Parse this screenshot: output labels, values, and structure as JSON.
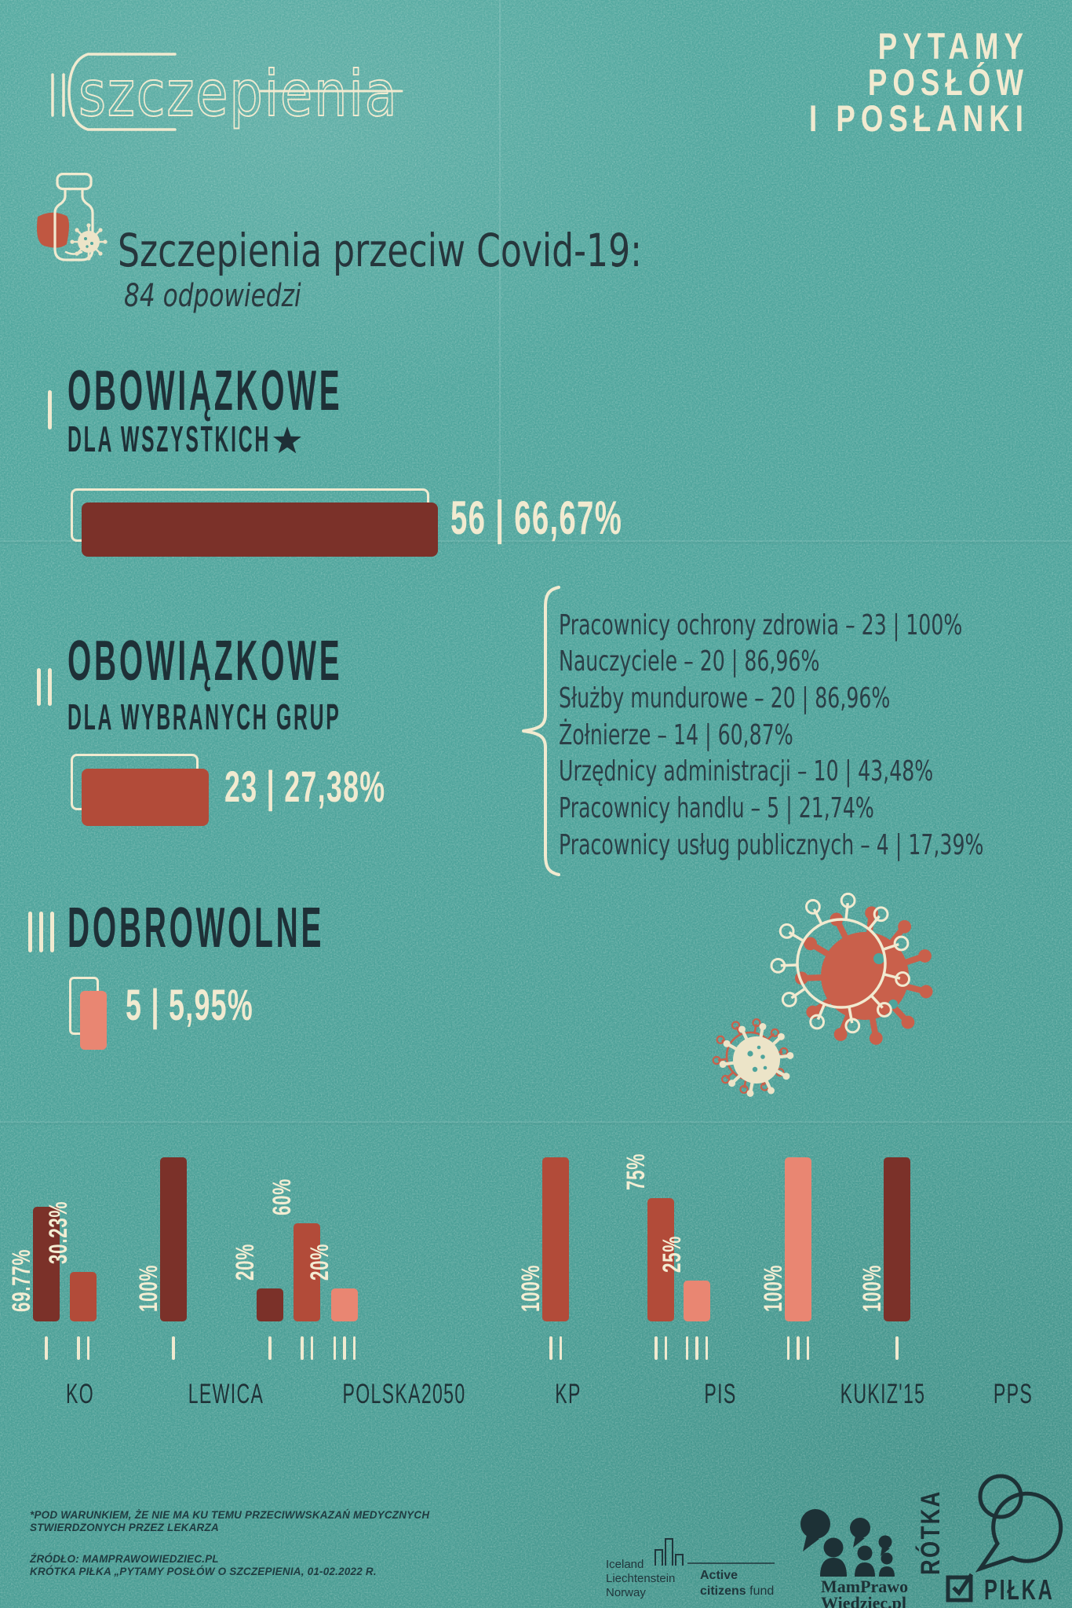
{
  "palette": {
    "background": "#4ea49c",
    "cream": "#f1ead0",
    "dark": "#1e3037",
    "maroon": "#7b3129",
    "red": "#b24b39",
    "salmon": "#e98672"
  },
  "header": {
    "logo_text": "szczepienia",
    "campaign_lines": [
      "PYTAMY",
      "POSŁÓW",
      "I POSŁANKI"
    ]
  },
  "intro": {
    "title": "Szczepienia przeciw Covid-19:",
    "subtitle": "84 odpowiedzi"
  },
  "sections": [
    {
      "numeral": "I",
      "title": "OBOWIĄZKOWE",
      "subtitle": "DLA WSZYSTKICH",
      "footnote_marker": "★",
      "value": "56 | 66,67%"
    },
    {
      "numeral": "II",
      "title": "OBOWIĄZKOWE",
      "subtitle": "DLA WYBRANYCH GRUP",
      "value": "23 | 27,38%"
    },
    {
      "numeral": "III",
      "title": "DOBROWOLNE",
      "value": "5 | 5,95%"
    }
  ],
  "groups_list": [
    "Pracownicy ochrony zdrowia – 23 | 100%",
    "Nauczyciele – 20 | 86,96%",
    "Służby mundurowe – 20 | 86,96%",
    "Żołnierze – 14 | 60,87%",
    "Urzędnicy administracji – 10 | 43,48%",
    "Pracownicy handlu – 5 | 21,74%",
    "Pracownicy usług publicznych – 4 | 17,39%"
  ],
  "chart_data": {
    "type": "bar",
    "unit": "%",
    "ylim": [
      0,
      100
    ],
    "legend": {
      "I": "OBOWIĄZKOWE DLA WSZYSTKICH",
      "II": "OBOWIĄZKOWE DLA WYBRANYCH GRUP",
      "III": "DOBROWOLNE"
    },
    "series_colors": {
      "I": "#7b3129",
      "II": "#b24b39",
      "III": "#e98672"
    },
    "categories": [
      "KO",
      "LEWICA",
      "POLSKA2050",
      "KP",
      "PIS",
      "KUKIZ'15",
      "PPS"
    ],
    "parties": [
      {
        "name": "KO",
        "bars": [
          {
            "series": "I",
            "value": 69.77,
            "label": "69.77%",
            "label_position": "inside"
          },
          {
            "series": "II",
            "value": 30.23,
            "label": "30.23%",
            "label_position": "above"
          }
        ]
      },
      {
        "name": "LEWICA",
        "bars": [
          {
            "series": "I",
            "value": 100,
            "label": "100%",
            "label_position": "inside"
          }
        ]
      },
      {
        "name": "POLSKA2050",
        "bars": [
          {
            "series": "I",
            "value": 20,
            "label": "20%",
            "label_position": "above"
          },
          {
            "series": "II",
            "value": 60,
            "label": "60%",
            "label_position": "above"
          },
          {
            "series": "III",
            "value": 20,
            "label": "20%",
            "label_position": "above"
          }
        ]
      },
      {
        "name": "KP",
        "bars": [
          {
            "series": "II",
            "value": 100,
            "label": "100%",
            "label_position": "inside"
          }
        ]
      },
      {
        "name": "PIS",
        "bars": [
          {
            "series": "II",
            "value": 75,
            "label": "75%",
            "label_position": "above"
          },
          {
            "series": "III",
            "value": 25,
            "label": "25%",
            "label_position": "above"
          }
        ]
      },
      {
        "name": "KUKIZ'15",
        "bars": [
          {
            "series": "III",
            "value": 100,
            "label": "100%",
            "label_position": "inside"
          }
        ]
      },
      {
        "name": "PPS",
        "bars": [
          {
            "series": "I",
            "value": 100,
            "label": "100%",
            "label_position": "inside"
          }
        ]
      }
    ]
  },
  "footer": {
    "footnote_lines": [
      "*POD WARUNKIEM, ŻE NIE MA KU TEMU PRZECIWWSKAZAŃ MEDYCZNYCH",
      "STWIERDZONYCH PRZEZ LEKARZA"
    ],
    "source_lines": [
      "ŹRÓDŁO: MAMPRAWOWIEDZIEC.PL",
      "KRÓTKA PIŁKA „PYTAMY POSŁÓW O SZCZEPIENIA, 01-02.2022 R."
    ]
  },
  "logos": {
    "acf": {
      "countries": [
        "Iceland",
        "Liechtenstein",
        "Norway"
      ],
      "name_line1": "Active",
      "name_line2_bold": "citizens",
      "name_line2_light": " fund"
    },
    "mpw": {
      "line1": "MamPrawo",
      "line2": "Wiedziec.pl"
    },
    "kp": {
      "vertical_text": "RÓTKA",
      "horizontal_text": "PIŁKA"
    }
  }
}
